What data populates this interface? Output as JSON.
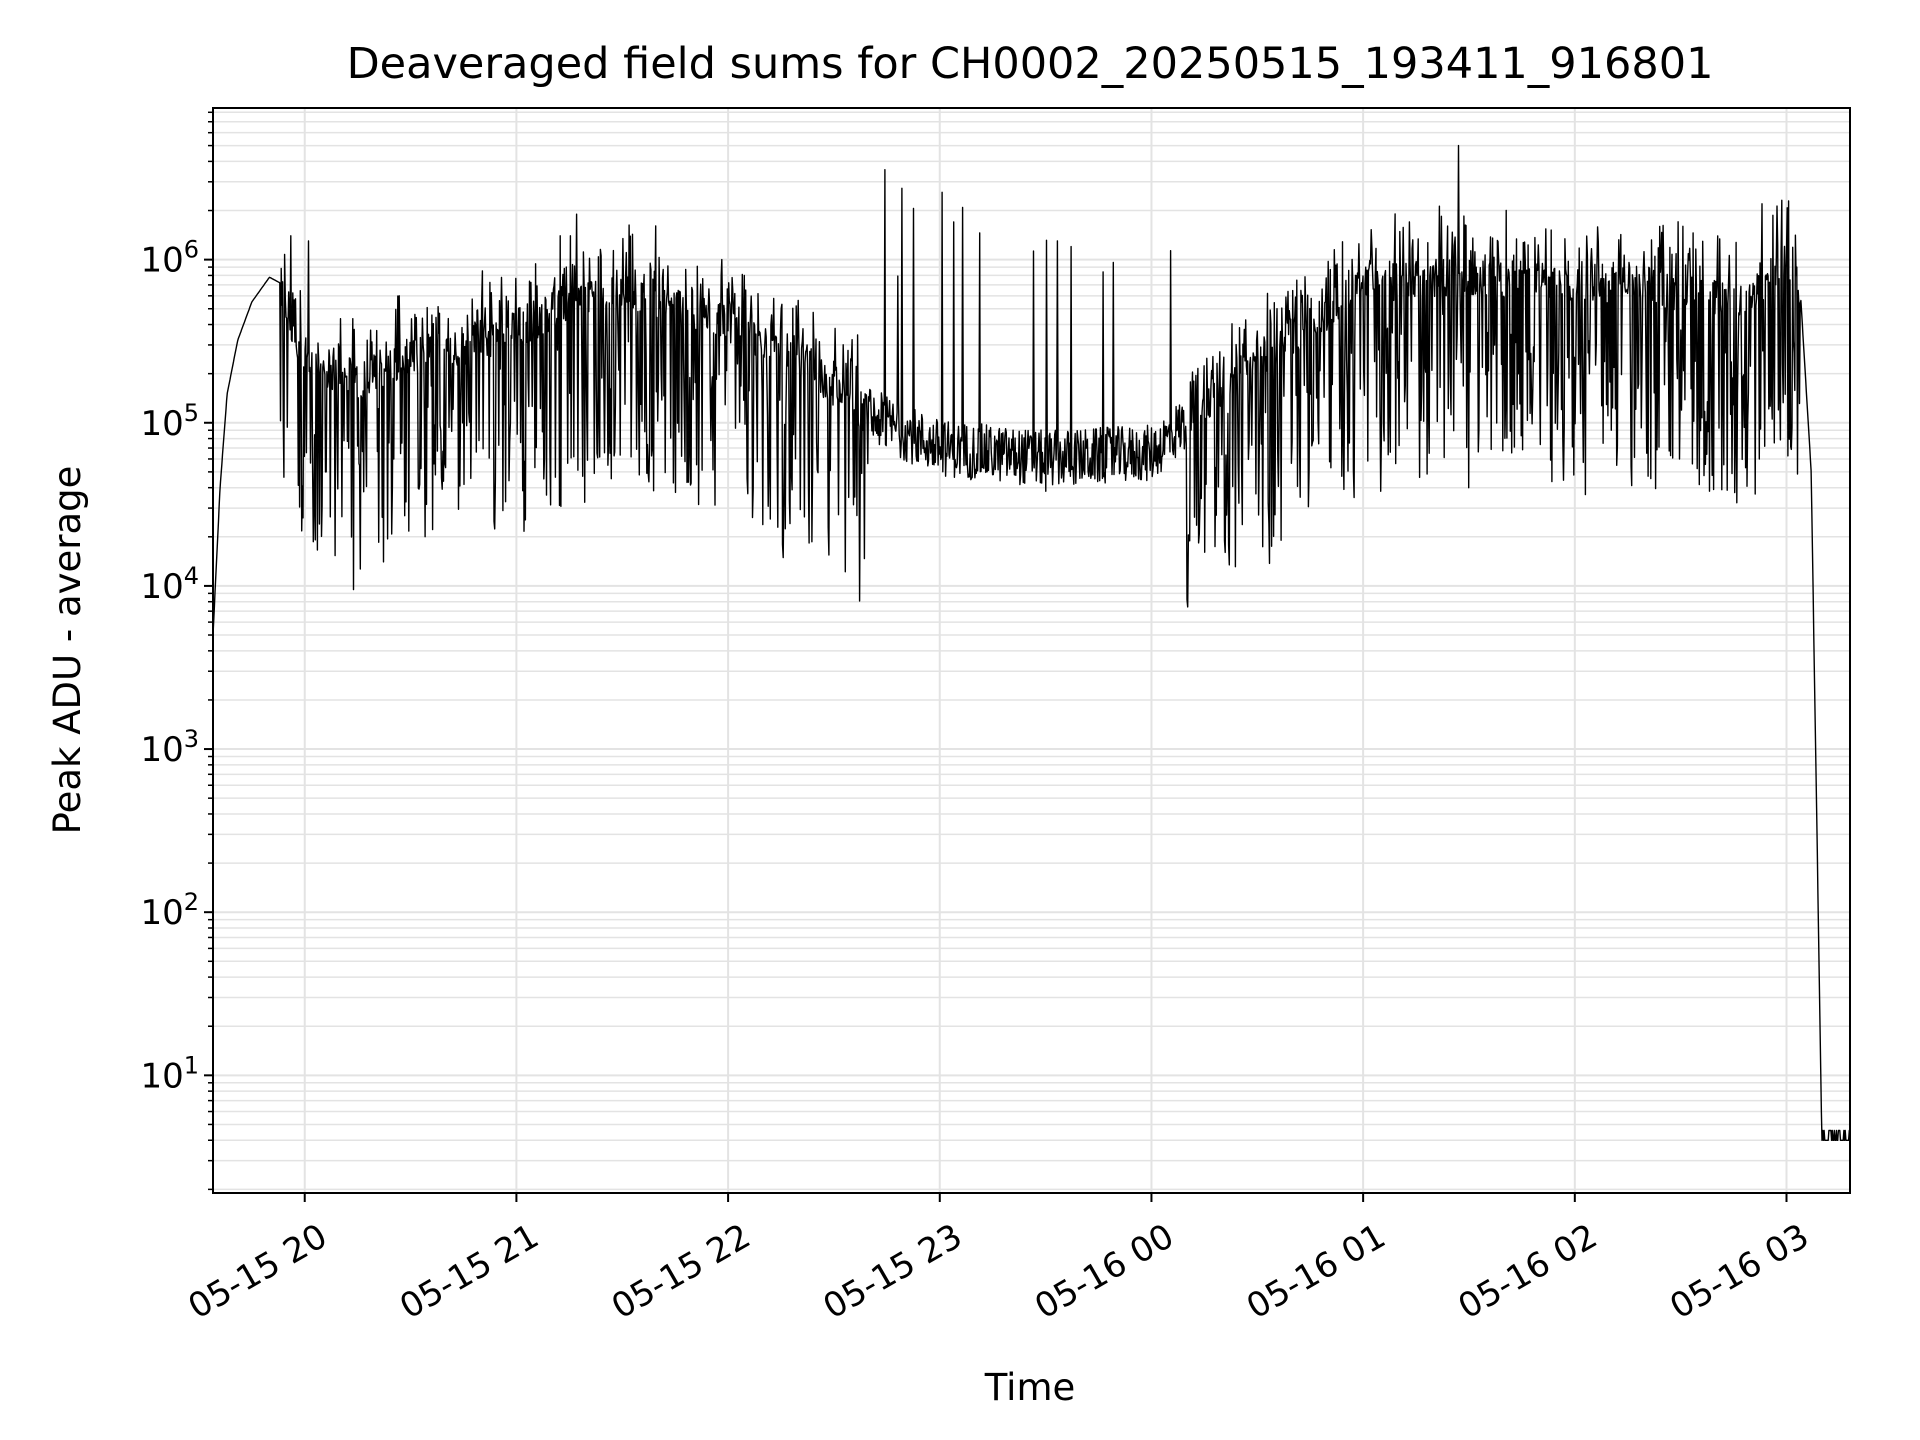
{
  "chart_data": {
    "type": "line",
    "title": "Deaveraged field sums for CH0002_20250515_193411_916801",
    "xlabel": "Time",
    "ylabel": "Peak ADU - average",
    "yscale": "log",
    "ylim": [
      1.9,
      8500000
    ],
    "xlim": [
      "2025-05-15 19:34",
      "2025-05-16 03:18"
    ],
    "grid": true,
    "x_ticks": [
      "05-15 20",
      "05-15 21",
      "05-15 22",
      "05-15 23",
      "05-16 00",
      "05-16 01",
      "05-16 02",
      "05-16 03"
    ],
    "y_ticks": [
      {
        "base": "10",
        "exp": "1",
        "value": 10
      },
      {
        "base": "10",
        "exp": "2",
        "value": 100
      },
      {
        "base": "10",
        "exp": "3",
        "value": 1000
      },
      {
        "base": "10",
        "exp": "4",
        "value": 10000
      },
      {
        "base": "10",
        "exp": "5",
        "value": 100000
      },
      {
        "base": "10",
        "exp": "6",
        "value": 1000000
      }
    ],
    "line_color": "#000000",
    "grid_color": "#e3e3e3",
    "series": [
      {
        "points": [
          [
            "2025-05-15 19:34",
            5000
          ],
          [
            "2025-05-15 19:36",
            40000
          ],
          [
            "2025-05-15 19:38",
            150000
          ],
          [
            "2025-05-15 19:41",
            320000
          ],
          [
            "2025-05-15 19:45",
            550000
          ],
          [
            "2025-05-15 19:50",
            780000
          ],
          [
            "2025-05-15 19:53",
            720000
          ],
          [
            "2025-05-15 19:56",
            350000
          ],
          [
            "2025-05-15 20:00",
            250000
          ],
          [
            "2025-05-15 20:15",
            180000
          ],
          [
            "2025-05-15 20:30",
            250000
          ],
          [
            "2025-05-15 20:45",
            300000
          ],
          [
            "2025-05-15 21:00",
            380000
          ],
          [
            "2025-05-15 21:15",
            550000
          ],
          [
            "2025-05-15 21:30",
            700000
          ],
          [
            "2025-05-15 21:45",
            520000
          ],
          [
            "2025-05-15 22:00",
            420000
          ],
          [
            "2025-05-15 22:20",
            250000
          ],
          [
            "2025-05-15 22:40",
            110000
          ],
          [
            "2025-05-15 23:00",
            70000
          ],
          [
            "2025-05-15 23:30",
            60000
          ],
          [
            "2025-05-16 00:00",
            65000
          ],
          [
            "2025-05-16 00:30",
            250000
          ],
          [
            "2025-05-16 01:00",
            700000
          ],
          [
            "2025-05-16 01:30",
            800000
          ],
          [
            "2025-05-16 02:00",
            750000
          ],
          [
            "2025-05-16 02:30",
            650000
          ],
          [
            "2025-05-16 02:50",
            550000
          ],
          [
            "2025-05-16 03:00",
            1100000
          ],
          [
            "2025-05-16 03:04",
            600000
          ],
          [
            "2025-05-16 03:07",
            50000
          ],
          [
            "2025-05-16 03:09",
            100
          ],
          [
            "2025-05-16 03:10",
            4
          ],
          [
            "2025-05-16 03:18",
            4
          ]
        ],
        "spikes": [
          [
            "2025-05-15 19:56",
            1400000
          ],
          [
            "2025-05-15 20:01",
            1300000
          ],
          [
            "2025-05-15 21:17",
            1900000
          ],
          [
            "2025-05-15 23:04",
            1700000
          ],
          [
            "2025-05-16 01:05",
            2100000
          ],
          [
            "2025-05-16 01:27",
            5000000
          ],
          [
            "2025-05-16 02:53",
            2200000
          ]
        ],
        "dips": [
          [
            "2025-05-15 20:06",
            50000
          ],
          [
            "2025-05-15 20:54",
            45000
          ],
          [
            "2025-05-15 22:36",
            35000
          ],
          [
            "2025-05-15 23:30",
            38000
          ],
          [
            "2025-05-16 01:05",
            38000
          ],
          [
            "2025-05-16 01:30",
            40000
          ]
        ]
      }
    ]
  }
}
